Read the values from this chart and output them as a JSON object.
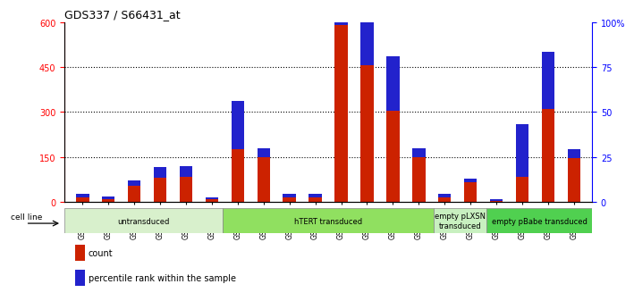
{
  "title": "GDS337 / S66431_at",
  "samples": [
    "GSM5157",
    "GSM5158",
    "GSM5163",
    "GSM5164",
    "GSM5175",
    "GSM5176",
    "GSM5159",
    "GSM5160",
    "GSM5165",
    "GSM5166",
    "GSM5169",
    "GSM5170",
    "GSM5172",
    "GSM5174",
    "GSM5161",
    "GSM5162",
    "GSM5167",
    "GSM5168",
    "GSM5171",
    "GSM5173"
  ],
  "counts": [
    15,
    10,
    55,
    80,
    85,
    10,
    175,
    150,
    15,
    15,
    590,
    455,
    305,
    150,
    15,
    65,
    5,
    85,
    310,
    145
  ],
  "percentiles": [
    2,
    1.5,
    3,
    6,
    6,
    1,
    27,
    5,
    2,
    2,
    54,
    51,
    30,
    5,
    2,
    2,
    1,
    29,
    32,
    5
  ],
  "groups": [
    {
      "label": "untransduced",
      "start": 0,
      "end": 6,
      "color": "#d8f0cc"
    },
    {
      "label": "hTERT transduced",
      "start": 6,
      "end": 14,
      "color": "#90e060"
    },
    {
      "label": "empty pLXSN\ntransduced",
      "start": 14,
      "end": 16,
      "color": "#c8f0c0"
    },
    {
      "label": "empty pBabe transduced",
      "start": 16,
      "end": 20,
      "color": "#50d050"
    }
  ],
  "ylim_left": [
    0,
    600
  ],
  "ylim_right": [
    0,
    100
  ],
  "yticks_left": [
    0,
    150,
    300,
    450,
    600
  ],
  "ytick_labels_left": [
    "0",
    "150",
    "300",
    "450",
    "600"
  ],
  "yticks_right": [
    0,
    25,
    50,
    75,
    100
  ],
  "ytick_labels_right": [
    "0",
    "25",
    "50",
    "75",
    "100%"
  ],
  "bar_color_red": "#cc2200",
  "bar_color_blue": "#2222cc",
  "cell_line_label": "cell line",
  "legend_count": "count",
  "legend_percentile": "percentile rank within the sample",
  "background_color": "#ffffff",
  "plot_bg_color": "#ffffff",
  "grid_dotted_ticks": [
    150,
    300,
    450
  ]
}
